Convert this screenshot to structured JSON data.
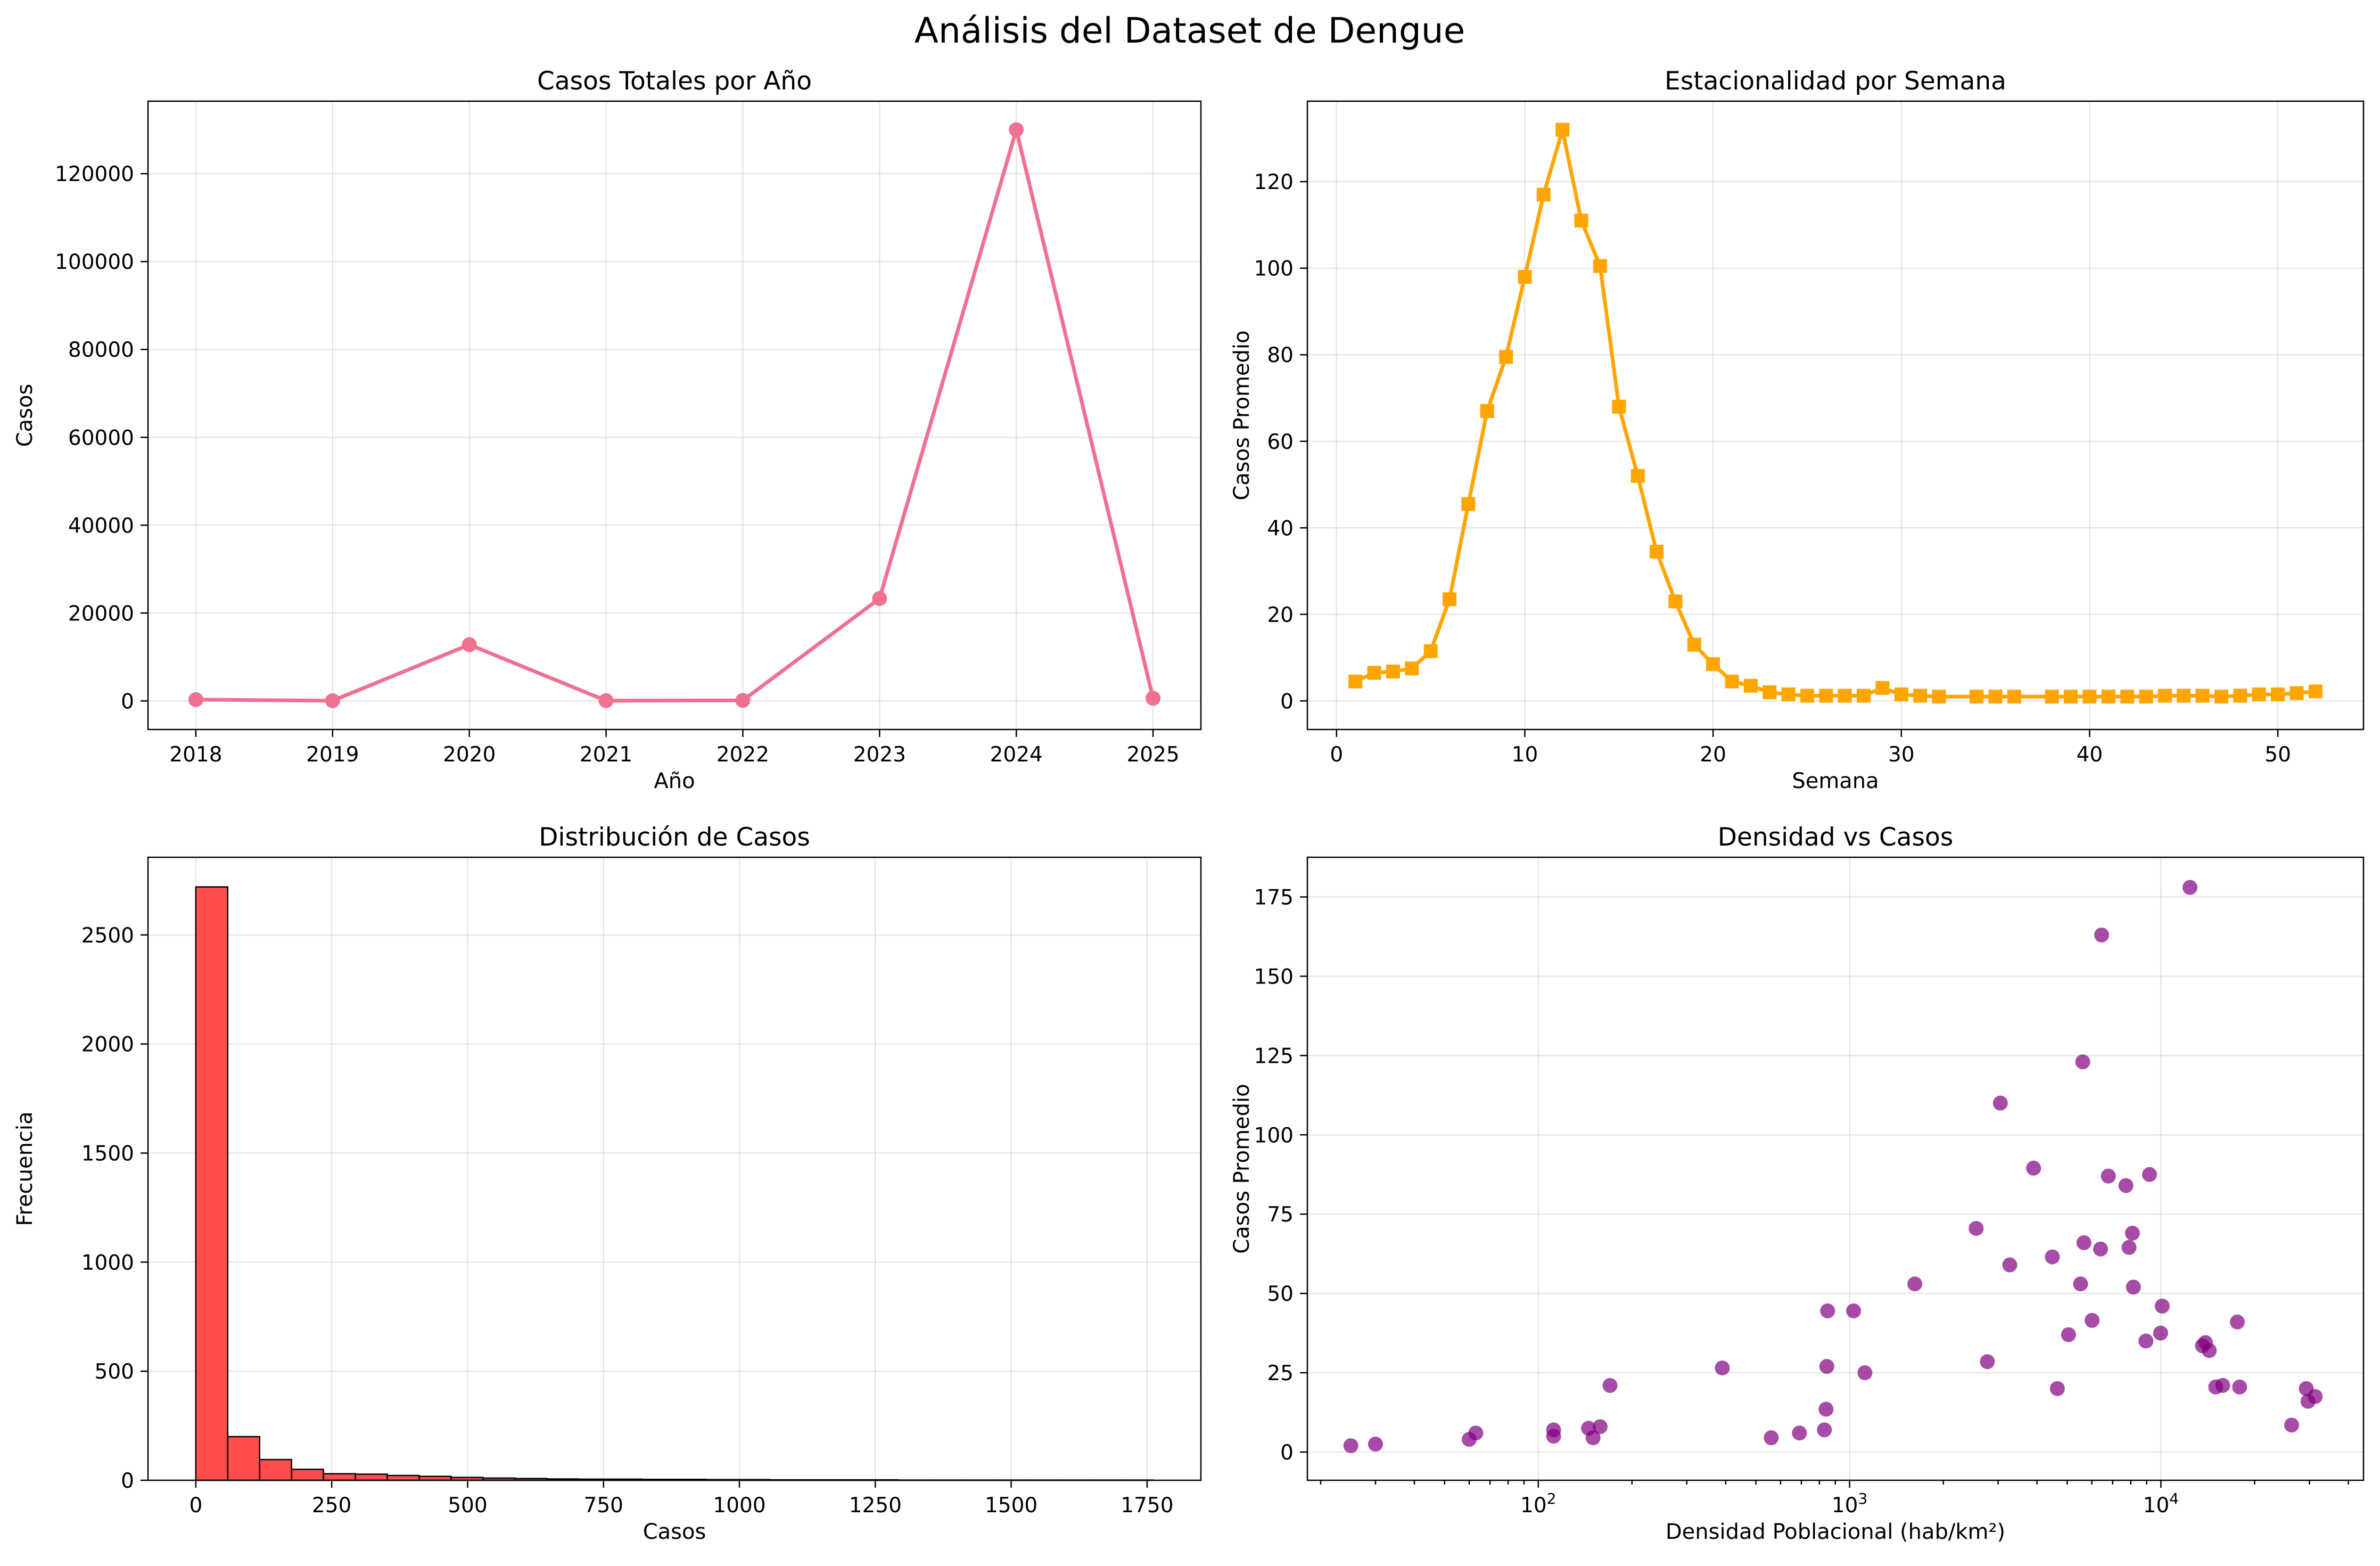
{
  "figure_title": "Análisis del Dataset de Dengue",
  "chart_data": [
    {
      "type": "line",
      "title": "Casos Totales por Año",
      "xlabel": "Año",
      "ylabel": "Casos",
      "x": [
        2018,
        2019,
        2020,
        2021,
        2022,
        2023,
        2024,
        2025
      ],
      "y": [
        300,
        50,
        12800,
        60,
        120,
        23300,
        130000,
        600
      ],
      "xlim": [
        2017.65,
        2025.35
      ],
      "ylim": [
        -6500,
        136500
      ],
      "xticks": [
        2018,
        2019,
        2020,
        2021,
        2022,
        2023,
        2024,
        2025
      ],
      "yticks": [
        0,
        20000,
        40000,
        60000,
        80000,
        100000,
        120000
      ],
      "color": "#f07090",
      "marker": "circle",
      "grid": true
    },
    {
      "type": "line",
      "title": "Estacionalidad por Semana",
      "xlabel": "Semana",
      "ylabel": "Casos Promedio",
      "x": [
        1,
        2,
        3,
        4,
        5,
        6,
        7,
        8,
        9,
        10,
        11,
        12,
        13,
        14,
        15,
        16,
        17,
        18,
        19,
        20,
        21,
        22,
        23,
        24,
        25,
        26,
        27,
        28,
        29,
        30,
        31,
        32,
        34,
        35,
        36,
        38,
        39,
        40,
        41,
        42,
        43,
        44,
        45,
        46,
        47,
        48,
        49,
        50,
        51,
        52
      ],
      "y": [
        4.5,
        6.5,
        6.8,
        7.5,
        11.5,
        23.5,
        45.5,
        67,
        79.5,
        98,
        117,
        132,
        111,
        100.5,
        68,
        52,
        34.5,
        23,
        13,
        8.5,
        4.5,
        3.5,
        2,
        1.5,
        1.2,
        1.2,
        1.2,
        1.2,
        3,
        1.5,
        1.2,
        1,
        1,
        1,
        1,
        1,
        1,
        1,
        1,
        1,
        1,
        1.2,
        1.2,
        1.2,
        1,
        1.2,
        1.5,
        1.5,
        1.8,
        2.2
      ],
      "xlim": [
        -1.55,
        54.55
      ],
      "ylim": [
        -6.6,
        138.6
      ],
      "xticks": [
        0,
        10,
        20,
        30,
        40,
        50
      ],
      "yticks": [
        0,
        20,
        40,
        60,
        80,
        100,
        120
      ],
      "color": "#ffa500",
      "marker": "square",
      "grid": true
    },
    {
      "type": "bar",
      "title": "Distribución de Casos",
      "xlabel": "Casos",
      "ylabel": "Frecuencia",
      "bin_width": 58.7,
      "bin_start": 0,
      "values": [
        2720,
        200,
        95,
        50,
        30,
        28,
        22,
        18,
        13,
        10,
        8,
        6,
        5,
        5,
        4,
        4,
        3,
        3,
        2,
        2,
        2,
        2,
        1,
        1,
        1,
        1,
        1,
        1,
        1,
        1
      ],
      "xlim": [
        -88,
        1849
      ],
      "ylim": [
        0,
        2856
      ],
      "xticks": [
        0,
        250,
        500,
        750,
        1000,
        1250,
        1500,
        1750
      ],
      "yticks": [
        0,
        500,
        1000,
        1500,
        2000,
        2500
      ],
      "color": "#ff4d4d",
      "edgecolor": "#000000",
      "grid": true
    },
    {
      "type": "scatter",
      "title": "Densidad vs Casos",
      "xlabel": "Densidad Poblacional (hab/km²)",
      "ylabel": "Casos Promedio",
      "xscale": "log",
      "points": [
        [
          25,
          2
        ],
        [
          30,
          2.5
        ],
        [
          60,
          4
        ],
        [
          63,
          6
        ],
        [
          112,
          7
        ],
        [
          112,
          5
        ],
        [
          145,
          7.5
        ],
        [
          150,
          4.5
        ],
        [
          158,
          8
        ],
        [
          170,
          21
        ],
        [
          390,
          26.5
        ],
        [
          560,
          4.5
        ],
        [
          690,
          6
        ],
        [
          830,
          7
        ],
        [
          840,
          13.5
        ],
        [
          845,
          27
        ],
        [
          850,
          44.5
        ],
        [
          1030,
          44.5
        ],
        [
          1120,
          25
        ],
        [
          1620,
          53
        ],
        [
          2550,
          70.5
        ],
        [
          2770,
          28.5
        ],
        [
          3050,
          110
        ],
        [
          3270,
          59
        ],
        [
          3900,
          89.5
        ],
        [
          4480,
          61.5
        ],
        [
          4650,
          20
        ],
        [
          5050,
          37
        ],
        [
          5520,
          53
        ],
        [
          5610,
          123
        ],
        [
          5660,
          66
        ],
        [
          6010,
          41.5
        ],
        [
          6400,
          64
        ],
        [
          6450,
          163
        ],
        [
          6780,
          87
        ],
        [
          7720,
          84
        ],
        [
          7900,
          64.5
        ],
        [
          8100,
          69
        ],
        [
          8160,
          52
        ],
        [
          8950,
          35
        ],
        [
          9190,
          87.5
        ],
        [
          9980,
          37.5
        ],
        [
          10100,
          46
        ],
        [
          12400,
          178
        ],
        [
          13600,
          33.5
        ],
        [
          13900,
          34.5
        ],
        [
          14300,
          32
        ],
        [
          15000,
          20.5
        ],
        [
          15800,
          21
        ],
        [
          17600,
          41
        ],
        [
          17900,
          20.5
        ],
        [
          26300,
          8.5
        ],
        [
          29300,
          20
        ],
        [
          29700,
          16
        ],
        [
          31300,
          17.5
        ]
      ],
      "xlim_log10": [
        1.2583,
        4.6508
      ],
      "ylim": [
        -8.9,
        187.5
      ],
      "xticks": [
        100,
        1000,
        10000
      ],
      "xtick_labels": [
        {
          "base": "10",
          "exp": "2"
        },
        {
          "base": "10",
          "exp": "3"
        },
        {
          "base": "10",
          "exp": "4"
        }
      ],
      "yticks": [
        0,
        25,
        50,
        75,
        100,
        125,
        150,
        175
      ],
      "color": "#800080",
      "alpha": 0.7,
      "grid": true
    }
  ]
}
